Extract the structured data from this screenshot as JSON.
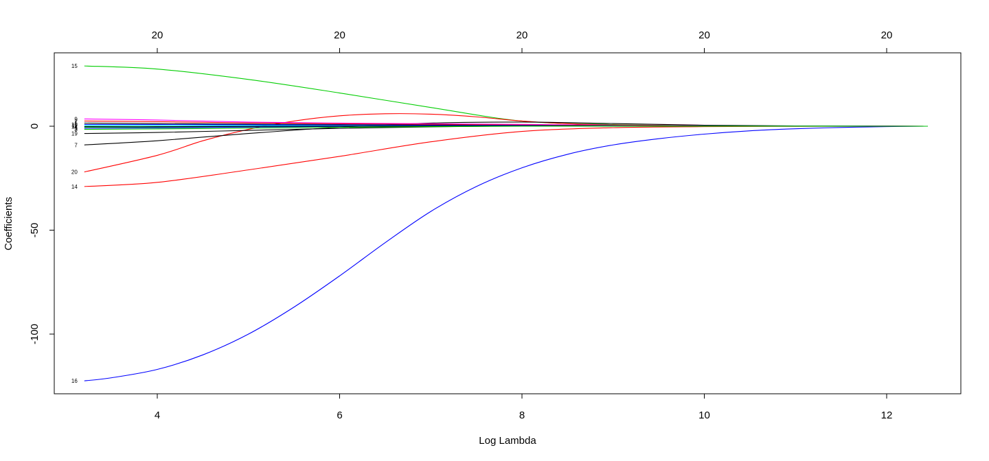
{
  "chart_data": {
    "type": "line",
    "title": "",
    "xlabel": "Log Lambda",
    "ylabel": "Coefficients",
    "xlim": [
      3.0,
      13.0
    ],
    "ylim": [
      -128,
      35
    ],
    "x_ticks": [
      "4",
      "6",
      "8",
      "10",
      "12"
    ],
    "y_ticks": [
      "0",
      "-50",
      "-100"
    ],
    "top_ticks": [
      "20",
      "20",
      "20",
      "20",
      "20"
    ],
    "colors": {
      "black": "#000000",
      "red": "#ff0000",
      "green": "#00cd00",
      "blue": "#0000ff",
      "cyan": "#00ffff",
      "magenta": "#ff00ff"
    },
    "series": [
      {
        "label": "15",
        "color": "#00cd00",
        "x": [
          3.2,
          4.0,
          5.0,
          6.0,
          7.0,
          8.0,
          9.0,
          10.0,
          11.0,
          12.0,
          12.45
        ],
        "values": [
          29,
          27.5,
          22.5,
          16,
          9,
          2.5,
          0.8,
          0.3,
          0.1,
          0.02,
          0
        ]
      },
      {
        "label": "16",
        "color": "#0000ff",
        "x": [
          3.2,
          3.5,
          4.0,
          4.5,
          5.0,
          5.5,
          6.0,
          6.5,
          7.0,
          7.5,
          8.0,
          8.5,
          9.0,
          9.5,
          10.0,
          10.5,
          11.0,
          11.5,
          12.0,
          12.45
        ],
        "values": [
          -122.5,
          -121,
          -117,
          -110,
          -100,
          -87,
          -72,
          -56,
          -41,
          -29,
          -20,
          -13.5,
          -9,
          -6,
          -3.8,
          -2.2,
          -1.2,
          -0.6,
          -0.2,
          0
        ]
      },
      {
        "label": "14",
        "color": "#ff0000",
        "x": [
          3.2,
          4.0,
          5.0,
          6.0,
          7.0,
          8.0,
          9.0,
          10.0,
          11.0,
          12.0,
          12.45
        ],
        "values": [
          -29,
          -27,
          -21,
          -14.5,
          -7.5,
          -2.5,
          -0.7,
          -0.2,
          -0.05,
          -0.01,
          0
        ]
      },
      {
        "label": "20",
        "color": "#ff0000",
        "x": [
          3.2,
          4.0,
          4.5,
          5.0,
          5.5,
          6.0,
          6.5,
          7.0,
          7.5,
          8.0,
          8.5,
          9.0,
          10.0,
          11.0,
          12.0,
          12.45
        ],
        "values": [
          -22,
          -14,
          -7,
          -1.5,
          2.5,
          5,
          6,
          5.8,
          4.5,
          2.5,
          1.2,
          0.6,
          0.2,
          0.05,
          0.01,
          0
        ]
      },
      {
        "label": "7",
        "color": "#000000",
        "x": [
          3.2,
          4.0,
          5.0,
          6.0,
          7.0,
          8.0,
          9.0,
          10.0,
          11.0,
          12.0,
          12.45
        ],
        "values": [
          -9,
          -7,
          -3.5,
          -0.5,
          1.5,
          2,
          1.3,
          0.5,
          0.15,
          0.03,
          0
        ]
      },
      {
        "label": "19",
        "color": "#000000",
        "x": [
          3.2,
          4.0,
          5.0,
          6.0,
          7.0,
          8.0,
          9.0,
          10.0,
          11.0,
          12.0,
          12.45
        ],
        "values": [
          -3.5,
          -3,
          -2,
          -1,
          -0.3,
          0.2,
          0.3,
          0.1,
          0.03,
          0.01,
          0
        ]
      },
      {
        "label": "9",
        "color": "#ff00ff",
        "x": [
          3.2,
          4.0,
          5.0,
          6.0,
          7.0,
          8.0,
          9.0,
          10.0,
          11.0,
          12.0,
          12.45
        ],
        "values": [
          3.5,
          3,
          2,
          1.5,
          1.2,
          0.9,
          0.5,
          0.2,
          0.05,
          0.01,
          0
        ]
      },
      {
        "label": "2",
        "color": "#ff0000",
        "x": [
          3.2,
          4.0,
          5.0,
          6.0,
          7.0,
          8.0,
          9.0,
          10.0,
          11.0,
          12.0,
          12.45
        ],
        "values": [
          2.5,
          2.2,
          1.6,
          1.2,
          0.9,
          0.6,
          0.35,
          0.15,
          0.04,
          0.01,
          0
        ]
      },
      {
        "label": "1",
        "color": "#000000",
        "x": [
          3.2,
          4.0,
          5.0,
          6.0,
          7.0,
          8.0,
          9.0,
          10.0,
          11.0,
          12.0,
          12.45
        ],
        "values": [
          1.5,
          1.3,
          1.0,
          0.8,
          0.6,
          0.4,
          0.25,
          0.1,
          0.03,
          0.01,
          0
        ]
      },
      {
        "label": "10",
        "color": "#0000ff",
        "x": [
          3.2,
          4.0,
          5.0,
          6.0,
          7.0,
          8.0,
          9.0,
          10.0,
          11.0,
          12.0,
          12.45
        ],
        "values": [
          0.8,
          0.8,
          0.7,
          0.6,
          0.45,
          0.3,
          0.18,
          0.08,
          0.02,
          0.01,
          0
        ]
      },
      {
        "label": "11",
        "color": "#00ffff",
        "x": [
          3.2,
          4.0,
          5.0,
          6.0,
          7.0,
          8.0,
          9.0,
          10.0,
          11.0,
          12.0,
          12.45
        ],
        "values": [
          0.3,
          0.3,
          0.3,
          0.25,
          0.2,
          0.15,
          0.1,
          0.05,
          0.01,
          0,
          0
        ]
      },
      {
        "label": "4",
        "color": "#00cd00",
        "x": [
          3.2,
          4.0,
          5.0,
          6.0,
          7.0,
          8.0,
          9.0,
          10.0,
          11.0,
          12.0,
          12.45
        ],
        "values": [
          -0.5,
          -0.4,
          -0.2,
          0.0,
          0.1,
          0.1,
          0.05,
          0.02,
          0.01,
          0,
          0
        ]
      },
      {
        "label": "5",
        "color": "#0000ff",
        "x": [
          3.2,
          4.0,
          5.0,
          6.0,
          7.0,
          8.0,
          9.0,
          10.0,
          11.0,
          12.0,
          12.45
        ],
        "values": [
          -1,
          -0.8,
          -0.4,
          -0.1,
          0.05,
          0.1,
          0.05,
          0.02,
          0.01,
          0,
          0
        ]
      },
      {
        "label": "12",
        "color": "#000000",
        "x": [
          3.2,
          4.0,
          5.0,
          6.0,
          7.0,
          8.0,
          9.0,
          10.0,
          11.0,
          12.0,
          12.45
        ],
        "values": [
          -0.2,
          -0.2,
          -0.1,
          0.05,
          0.1,
          0.08,
          0.04,
          0.02,
          0.01,
          0,
          0
        ]
      },
      {
        "label": "3",
        "color": "#00cd00",
        "x": [
          3.2,
          4.0,
          5.0,
          6.0,
          7.0,
          8.0,
          9.0,
          10.0,
          11.0,
          12.0,
          12.45
        ],
        "values": [
          -1.5,
          -1.3,
          -0.9,
          -0.5,
          -0.2,
          0,
          0.05,
          0.02,
          0.01,
          0,
          0
        ]
      }
    ]
  }
}
